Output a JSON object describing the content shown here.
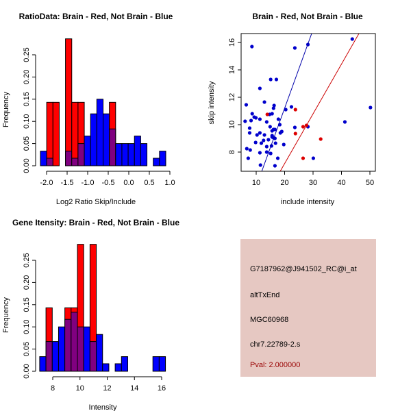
{
  "chart_data": [
    {
      "type": "bar",
      "subtype": "overlaid-histogram",
      "title": "RatioData: Brain - Red, Not Brain - Blue",
      "xlabel": "Log2 Ratio Skip/Include",
      "ylabel": "Frequency",
      "xlim": [
        -2.15,
        1.0
      ],
      "ylim": [
        0,
        0.286
      ],
      "xticks": [
        "-2.0",
        "-1.5",
        "-1.0",
        "-0.5",
        "0.0",
        "0.5",
        "1.0"
      ],
      "xtick_values": [
        -2.0,
        -1.5,
        -1.0,
        -0.5,
        0.0,
        0.5,
        1.0
      ],
      "yticks": [
        "0.00",
        "0.05",
        "0.10",
        "0.15",
        "0.20",
        "0.25"
      ],
      "ytick_values": [
        0,
        0.05,
        0.1,
        0.15,
        0.2,
        0.25
      ],
      "bin_start": -2.15,
      "bin_width": 0.1525,
      "series": [
        {
          "name": "Brain",
          "color": "#ff0000",
          "values": [
            0,
            0.143,
            0.143,
            0,
            0.286,
            0.143,
            0.143,
            0,
            0,
            0,
            0,
            0.143,
            0,
            0,
            0,
            0,
            0,
            0,
            0,
            0
          ]
        },
        {
          "name": "Not Brain",
          "color": "#0000ff",
          "values": [
            0.033,
            0.017,
            0,
            0,
            0.033,
            0.017,
            0.05,
            0.067,
            0.117,
            0.15,
            0.117,
            0.083,
            0.05,
            0.05,
            0.05,
            0.067,
            0.05,
            0,
            0.017,
            0.033
          ]
        }
      ],
      "overlap_color": "#800080"
    },
    {
      "type": "scatter",
      "title": "Brain - Red, Not Brain - Blue",
      "xlabel": "include intensity",
      "ylabel": "skip intensity",
      "xlim": [
        4.6,
        52
      ],
      "ylim": [
        6.65,
        16.7
      ],
      "xticks": [
        "10",
        "20",
        "30",
        "40",
        "50"
      ],
      "xtick_values": [
        10,
        20,
        30,
        40,
        50
      ],
      "yticks": [
        "8",
        "10",
        "12",
        "14",
        "16"
      ],
      "ytick_values": [
        8,
        10,
        12,
        14,
        16
      ],
      "series": [
        {
          "name": "Not Brain",
          "color": "#0000cc",
          "points": [
            [
              8.5,
              15.7
            ],
            [
              23.6,
              15.6
            ],
            [
              28.2,
              15.85
            ],
            [
              43.8,
              16.25
            ],
            [
              15.1,
              13.3
            ],
            [
              17.1,
              13.3
            ],
            [
              11.3,
              12.65
            ],
            [
              12.9,
              11.65
            ],
            [
              6.5,
              11.45
            ],
            [
              16.3,
              11.4
            ],
            [
              16.1,
              11.2
            ],
            [
              22.4,
              11.3
            ],
            [
              20.4,
              11.1
            ],
            [
              50.2,
              11.25
            ],
            [
              8.6,
              10.8
            ],
            [
              14.7,
              10.75
            ],
            [
              15.6,
              10.8
            ],
            [
              9.3,
              10.55
            ],
            [
              9.9,
              10.5
            ],
            [
              11.3,
              10.4
            ],
            [
              17.8,
              10.4
            ],
            [
              6.1,
              10.25
            ],
            [
              8.2,
              10.3
            ],
            [
              13.7,
              10.2
            ],
            [
              41.2,
              10.2
            ],
            [
              18.3,
              10.0
            ],
            [
              7.7,
              9.75
            ],
            [
              14.9,
              9.85
            ],
            [
              23.6,
              9.8
            ],
            [
              28.2,
              9.85
            ],
            [
              16.1,
              9.65
            ],
            [
              16.6,
              9.65
            ],
            [
              15.6,
              9.55
            ],
            [
              19.0,
              9.5
            ],
            [
              18.5,
              9.4
            ],
            [
              7.7,
              9.4
            ],
            [
              11.3,
              9.4
            ],
            [
              10.3,
              9.25
            ],
            [
              12.9,
              9.25
            ],
            [
              15.6,
              9.2
            ],
            [
              15.6,
              9.1
            ],
            [
              16.1,
              9.05
            ],
            [
              16.6,
              9.0
            ],
            [
              14.3,
              8.9
            ],
            [
              12.6,
              8.85
            ],
            [
              9.8,
              8.7
            ],
            [
              11.8,
              8.65
            ],
            [
              16.8,
              8.65
            ],
            [
              19.7,
              8.55
            ],
            [
              15.4,
              8.45
            ],
            [
              13.7,
              8.4
            ],
            [
              6.7,
              8.25
            ],
            [
              7.9,
              8.15
            ],
            [
              13.7,
              8.0
            ],
            [
              11.3,
              7.95
            ],
            [
              15.1,
              7.9
            ],
            [
              7.2,
              7.55
            ],
            [
              17.6,
              7.55
            ],
            [
              30.1,
              7.55
            ],
            [
              11.5,
              7.05
            ],
            [
              16.6,
              7.0
            ]
          ]
        },
        {
          "name": "Brain",
          "color": "#dd0000",
          "points": [
            [
              13.9,
              10.75
            ],
            [
              23.8,
              11.1
            ],
            [
              26.5,
              9.85
            ],
            [
              27.7,
              9.95
            ],
            [
              23.8,
              9.35
            ],
            [
              32.7,
              8.95
            ],
            [
              26.5,
              7.55
            ]
          ]
        }
      ],
      "fit_lines": [
        {
          "name": "Not Brain fit",
          "color": "#0000aa",
          "slope": 0.573,
          "intercept": -0.26
        },
        {
          "name": "Brain fit",
          "color": "#cc0000",
          "slope": 0.363,
          "intercept": -0.1
        }
      ]
    },
    {
      "type": "bar",
      "subtype": "overlaid-histogram",
      "title": "Gene Itensity: Brain - Red, Not Brain - Blue",
      "xlabel": "Intensity",
      "ylabel": "Frequency",
      "xlim": [
        7.04,
        16.3
      ],
      "ylim": [
        0,
        0.286
      ],
      "xticks": [
        "8",
        "10",
        "12",
        "14",
        "16"
      ],
      "xtick_values": [
        8,
        10,
        12,
        14,
        16
      ],
      "yticks": [
        "0.00",
        "0.05",
        "0.10",
        "0.15",
        "0.20",
        "0.25"
      ],
      "ytick_values": [
        0,
        0.05,
        0.1,
        0.15,
        0.2,
        0.25
      ],
      "bin_start": 7.04,
      "bin_width": 0.462,
      "series": [
        {
          "name": "Brain",
          "color": "#ff0000",
          "values": [
            0,
            0.143,
            0,
            0,
            0.143,
            0.143,
            0.286,
            0,
            0.286,
            0,
            0,
            0,
            0,
            0,
            0,
            0,
            0,
            0,
            0,
            0
          ]
        },
        {
          "name": "Not Brain",
          "color": "#0000ff",
          "values": [
            0.033,
            0.067,
            0.067,
            0.1,
            0.117,
            0.133,
            0.1,
            0.1,
            0.067,
            0.083,
            0.017,
            0,
            0.017,
            0.033,
            0,
            0,
            0,
            0,
            0.033,
            0.033
          ]
        }
      ],
      "overlap_color": "#800080"
    }
  ],
  "info_panel": {
    "background": "#e6c8c2",
    "probe_id": "G7187962@J941502_RC@i_at",
    "event_type": "altTxEnd",
    "gene": "MGC60968",
    "location": "chr7.22789-2.s",
    "pval": "Pval: 2.000000",
    "pval_color": "#990000"
  }
}
